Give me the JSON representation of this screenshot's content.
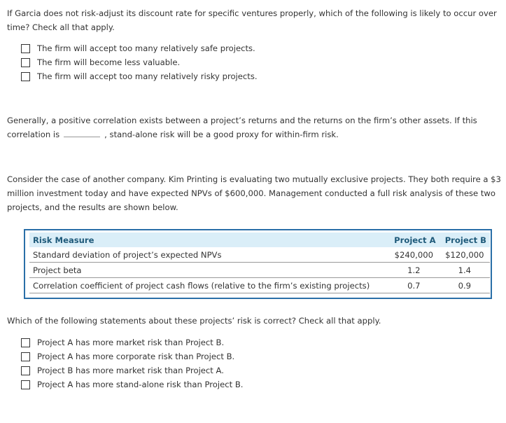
{
  "q1": {
    "text": "If Garcia does not risk-adjust its discount rate for specific ventures properly, which of the following is likely to occur over time? Check all that apply.",
    "options": [
      "The firm will accept too many relatively safe projects.",
      "The firm will become less valuable.",
      "The firm will accept too many relatively risky projects."
    ]
  },
  "q2": {
    "before": "Generally, a positive correlation exists between a project’s returns and the returns on the firm’s other assets. If this correlation is",
    "after": ", stand-alone risk will be a good proxy for within-firm risk."
  },
  "q3": {
    "text": "Consider the case of another company. Kim Printing is evaluating two mutually exclusive projects. They both require a $3 million investment today and have expected NPVs of $600,000. Management conducted a full risk analysis of these two projects, and the results are shown below."
  },
  "table": {
    "headers": [
      "Risk Measure",
      "Project A",
      "Project B"
    ],
    "rows": [
      [
        "Standard deviation of project’s expected NPVs",
        "$240,000",
        "$120,000"
      ],
      [
        "Project beta",
        "1.2",
        "1.4"
      ],
      [
        "Correlation coefficient of project cash flows (relative to the firm’s existing projects)",
        "0.7",
        "0.9"
      ]
    ]
  },
  "q4": {
    "text": "Which of the following statements about these projects’ risk is correct? Check all that apply.",
    "options": [
      "Project A has more market risk than Project B.",
      "Project A has more corporate risk than Project B.",
      "Project B has more market risk than Project A.",
      "Project A has more stand-alone risk than Project B."
    ]
  }
}
